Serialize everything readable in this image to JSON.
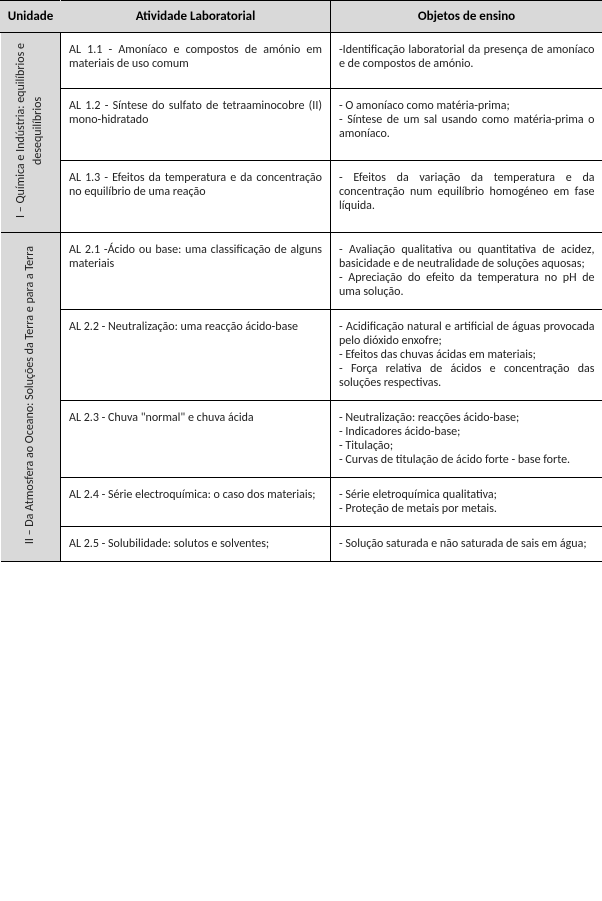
{
  "headers": {
    "unidade": "Unidade",
    "atividade": "Atividade Laboratorial",
    "objetos": "Objetos de ensino"
  },
  "units": [
    {
      "label": "I – Química e Indústria: equilíbrios e\ndesequilíbrios",
      "rows": [
        {
          "act": "AL 1.1 - Amoníaco e compostos de amónio em materiais de uso comum",
          "obj": "-Identificação laboratorial da presença de amoníaco e de compostos de amónio."
        },
        {
          "act": "AL 1.2 - Síntese do sulfato de tetraaminocobre (II) mono-hidratado",
          "obj": "- O amoníaco como matéria-prima;\n- Síntese de um sal usando como matéria-prima o amoníaco."
        },
        {
          "act": "AL 1.3 - Efeitos da temperatura e da concentração no equilíbrio de uma reação",
          "obj": "- Efeitos da variação da temperatura e da concentração num equilíbrio homogéneo em fase líquida."
        }
      ]
    },
    {
      "label": "II – Da Atmosfera ao Oceano: Soluções da Terra e para a Terra",
      "rows": [
        {
          "act": "AL 2.1 -Ácido ou base: uma classificação de alguns materiais",
          "obj": "- Avaliação qualitativa ou quantitativa de acidez, basicidade e de neutralidade de soluções aquosas;\n- Apreciação do efeito da temperatura no pH de uma solução."
        },
        {
          "act": "AL 2.2 - Neutralização: uma reacção ácido-base",
          "obj": "- Acidificação natural e artificial de águas provocada pelo dióxido enxofre;\n- Efeitos das chuvas ácidas em materiais;\n- Força relativa de ácidos e concentração das soluções respectivas."
        },
        {
          "act": "AL 2.3 - Chuva \"normal\" e chuva ácida",
          "obj": "- Neutralização: reacções ácido-base;\n- Indicadores ácido-base;\n- Titulação;\n- Curvas de titulação de ácido forte - base forte."
        },
        {
          "act": "AL 2.4 - Série electroquímica: o caso dos materiais;",
          "obj": "- Série eletroquímica qualitativa;\n- Proteção de metais por metais."
        },
        {
          "act": "AL 2.5 - Solubilidade: solutos e solventes;",
          "obj": "- Solução saturada e não saturada de sais em água;"
        }
      ]
    }
  ]
}
